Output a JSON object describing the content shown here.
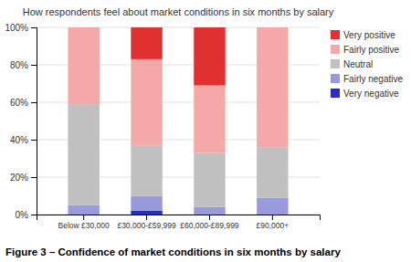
{
  "chart_data": {
    "type": "bar",
    "stacked": true,
    "title": "How respondents feel about market conditions in six months by salary",
    "caption": "Figure 3 – Confidence of market conditions in six months by salary",
    "categories": [
      "Below £30,000",
      "£30,000-£59,999",
      "£60,000-£89,999",
      "£90,000+"
    ],
    "series": [
      {
        "name": "Very negative",
        "color": "#2b2bc8",
        "values": [
          0,
          2,
          0,
          0
        ]
      },
      {
        "name": "Fairly negative",
        "color": "#9999dd",
        "values": [
          5,
          8,
          4,
          9
        ]
      },
      {
        "name": "Neutral",
        "color": "#c0c0c0",
        "values": [
          54,
          27,
          29,
          27
        ]
      },
      {
        "name": "Fairly positive",
        "color": "#f5a8a8",
        "values": [
          41,
          46,
          36,
          64
        ]
      },
      {
        "name": "Very positive",
        "color": "#e03030",
        "values": [
          0,
          17,
          31,
          0
        ]
      }
    ],
    "ylim": [
      0,
      100
    ],
    "yticks": [
      {
        "value": 0,
        "label": "0%"
      },
      {
        "value": 20,
        "label": "20%"
      },
      {
        "value": 40,
        "label": "40%"
      },
      {
        "value": 60,
        "label": "60%"
      },
      {
        "value": 80,
        "label": "80%"
      },
      {
        "value": 100,
        "label": "100%"
      }
    ],
    "grid": true,
    "legend": "right"
  }
}
